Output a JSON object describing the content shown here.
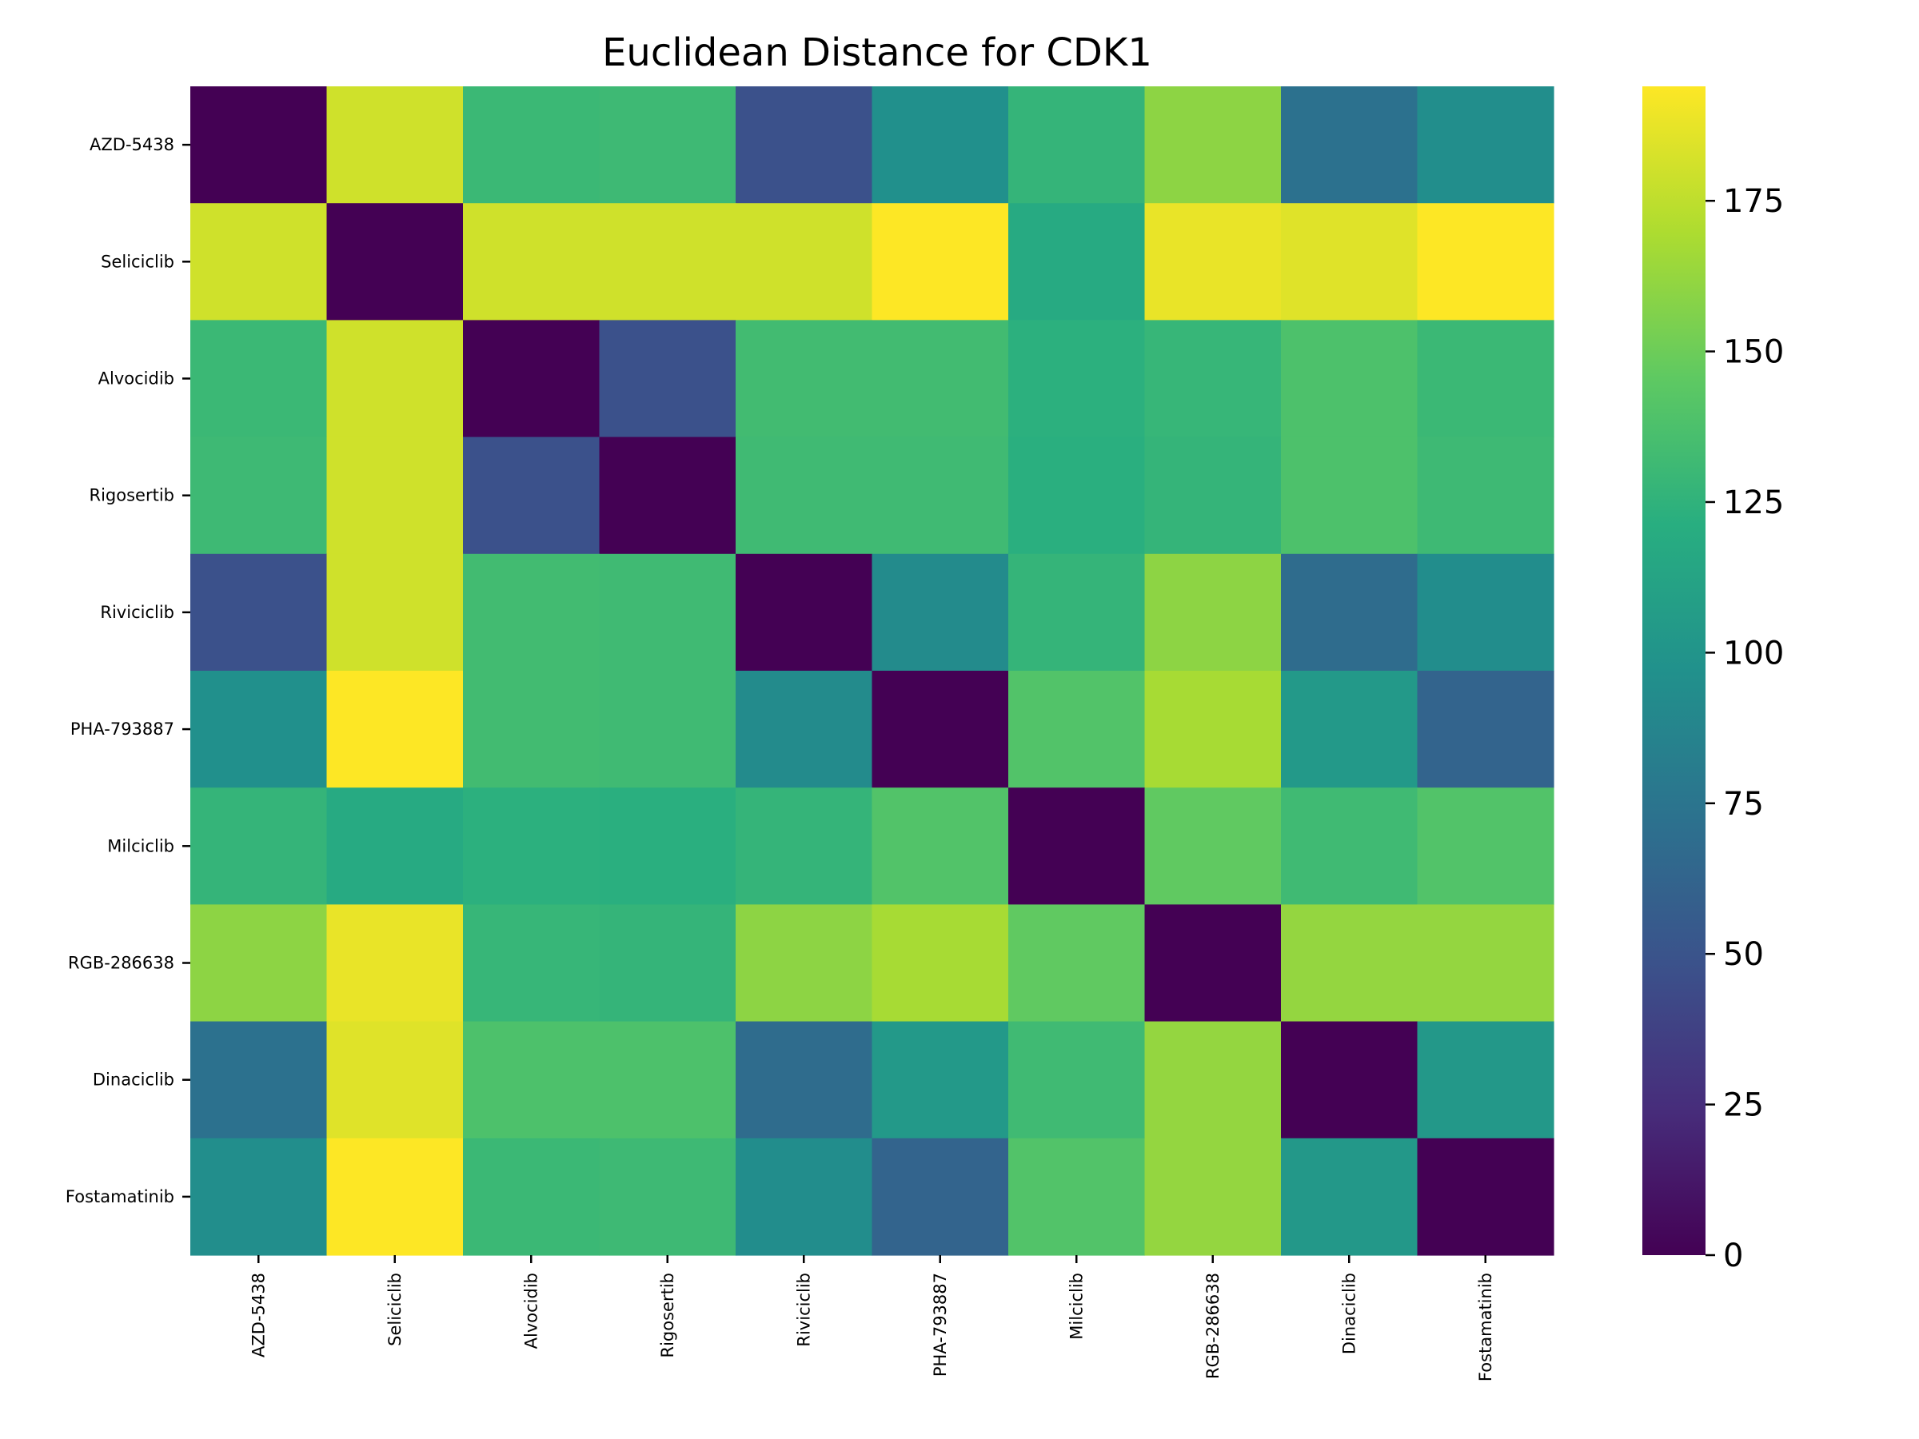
{
  "chart_data": {
    "type": "heatmap",
    "title": "Euclidean Distance for CDK1",
    "xlabel": "",
    "ylabel": "",
    "rows": [
      "AZD-5438",
      "Seliciclib",
      "Alvocidib",
      "Rigosertib",
      "Riviciclib",
      "PHA-793887",
      "Milciclib",
      "RGB-286638",
      "Dinaciclib",
      "Fostamatinib"
    ],
    "columns": [
      "AZD-5438",
      "Seliciclib",
      "Alvocidib",
      "Rigosertib",
      "Riviciclib",
      "PHA-793887",
      "Milciclib",
      "RGB-286638",
      "Dinaciclib",
      "Fostamatinib"
    ],
    "values": [
      [
        0,
        180,
        130,
        131,
        48,
        96,
        127,
        160,
        72,
        95
      ],
      [
        180,
        0,
        180,
        180,
        180,
        194,
        118,
        188,
        185,
        194
      ],
      [
        130,
        180,
        0,
        48,
        133,
        133,
        123,
        128,
        138,
        130
      ],
      [
        131,
        180,
        48,
        0,
        132,
        132,
        122,
        127,
        138,
        131
      ],
      [
        48,
        180,
        133,
        132,
        0,
        92,
        127,
        160,
        68,
        94
      ],
      [
        96,
        194,
        133,
        132,
        92,
        0,
        140,
        168,
        104,
        62
      ],
      [
        127,
        118,
        123,
        122,
        127,
        140,
        0,
        146,
        132,
        140
      ],
      [
        160,
        188,
        128,
        127,
        160,
        168,
        146,
        0,
        162,
        162
      ],
      [
        72,
        185,
        138,
        138,
        68,
        104,
        132,
        162,
        0,
        103
      ],
      [
        95,
        194,
        130,
        131,
        94,
        62,
        140,
        162,
        103,
        0
      ]
    ],
    "colorbar": {
      "min": 0,
      "max": 194,
      "ticks": [
        0,
        25,
        50,
        75,
        100,
        125,
        150,
        175
      ],
      "colormap": "viridis"
    },
    "grid": false,
    "legend": "right"
  }
}
